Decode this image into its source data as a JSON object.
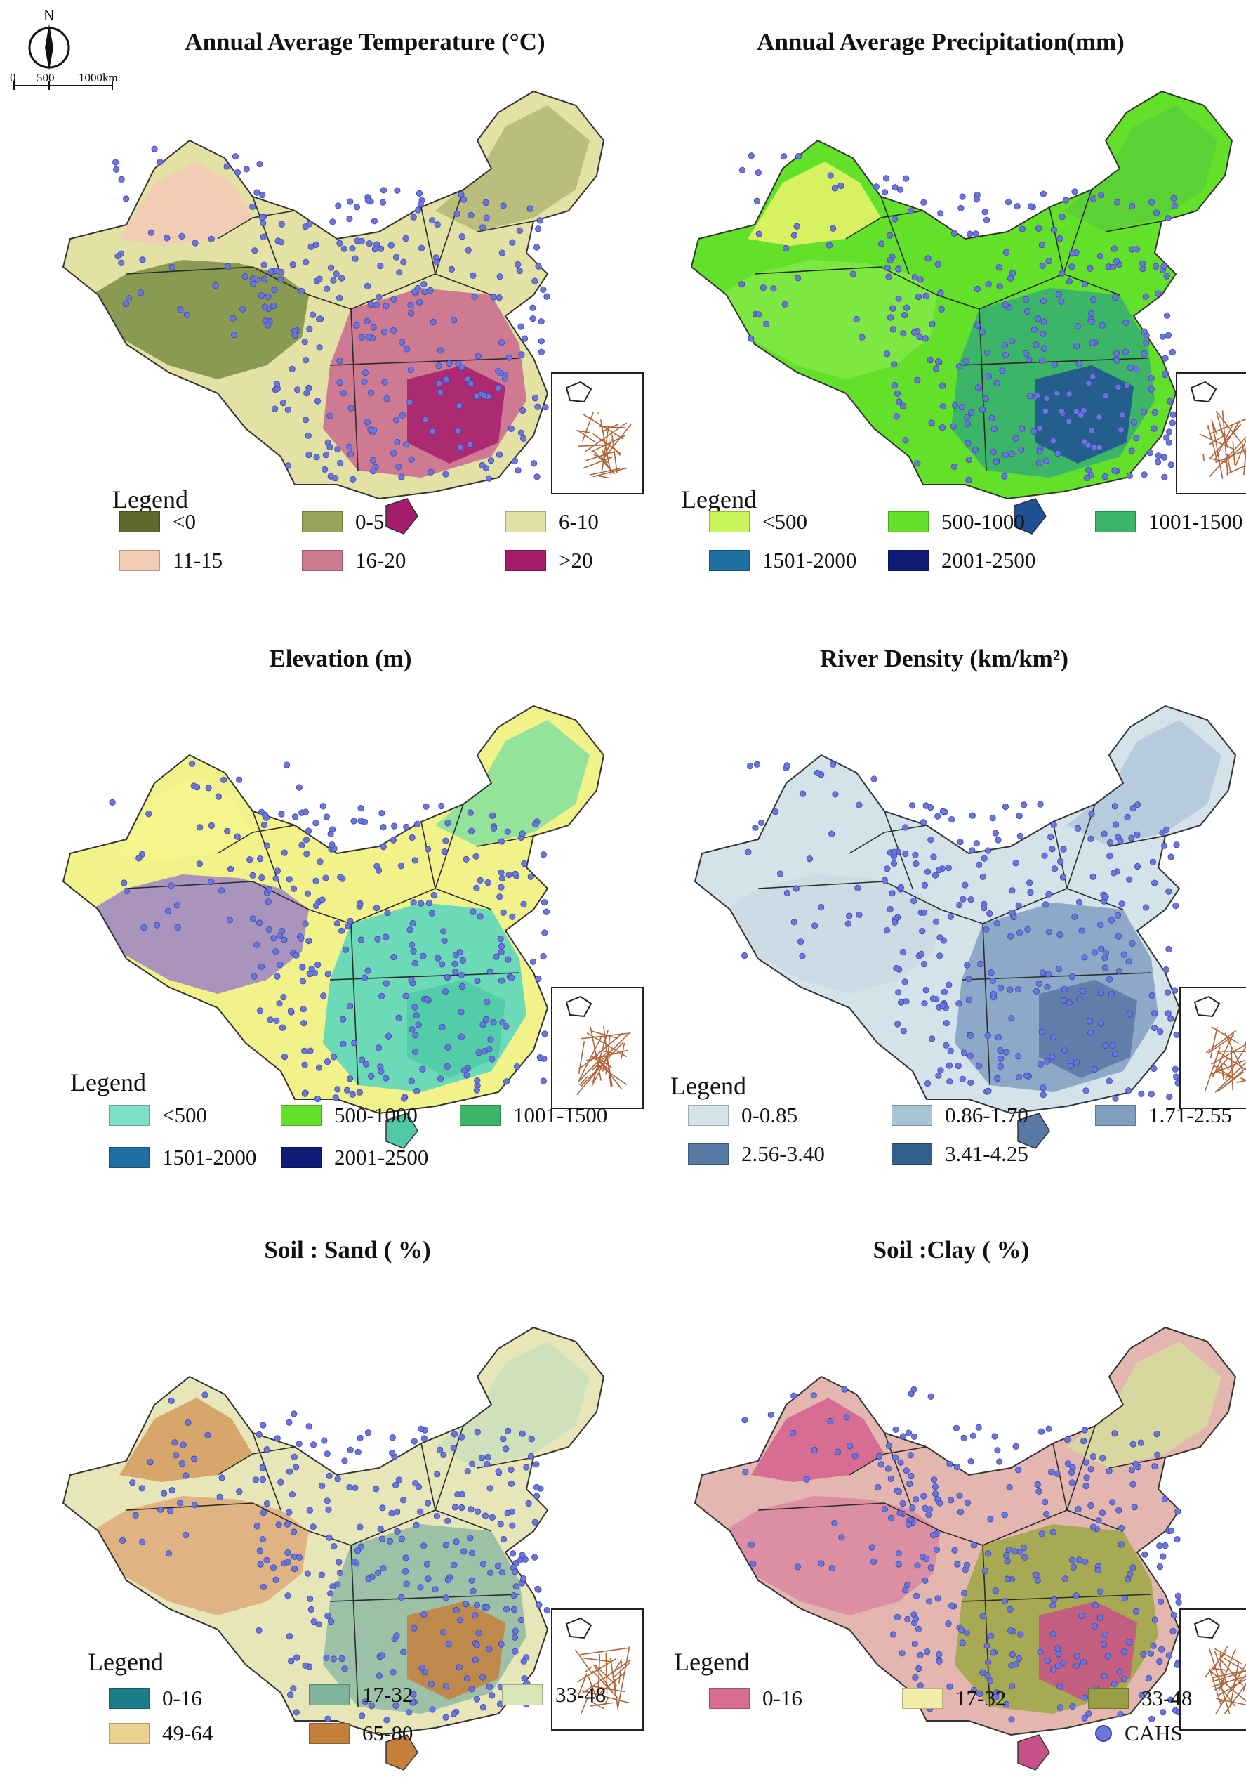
{
  "compass": {
    "north_label": "N",
    "scale_labels": [
      "0",
      "500",
      "1000km"
    ]
  },
  "panels": [
    {
      "title": "Annual Average Temperature (°C)",
      "legend_title": "Legend",
      "items": [
        {
          "label": "<0",
          "color": "#5f6b2e"
        },
        {
          "label": "0-5",
          "color": "#9aa35a"
        },
        {
          "label": "6-10",
          "color": "#e3e1a4"
        },
        {
          "label": "11-15",
          "color": "#f2cdb3"
        },
        {
          "label": "16-20",
          "color": "#cf7a93"
        },
        {
          "label": ">20",
          "color": "#a41c6b"
        }
      ]
    },
    {
      "title": "Annual Average Precipitation(mm)",
      "legend_title": "Legend",
      "items": [
        {
          "label": "<500",
          "color": "#c8f55a"
        },
        {
          "label": "500-1000",
          "color": "#62e02a"
        },
        {
          "label": "1001-1500",
          "color": "#3cb568"
        },
        {
          "label": "1501-2000",
          "color": "#1f6fa2"
        },
        {
          "label": "2001-2500",
          "color": "#0f1d78"
        }
      ]
    },
    {
      "title": "Elevation (m)",
      "legend_title": "Legend",
      "items": [
        {
          "label": "<500",
          "color": "#7fe0c8"
        },
        {
          "label": "500-1000",
          "color": "#62e02a"
        },
        {
          "label": "1001-1500",
          "color": "#3cb568"
        },
        {
          "label": "1501-2000",
          "color": "#1f6fa2"
        },
        {
          "label": "2001-2500",
          "color": "#0f1d78"
        }
      ]
    },
    {
      "title": "River Density (km/km²)",
      "legend_title": "Legend",
      "items": [
        {
          "label": "0-0.85",
          "color": "#d4e2ea"
        },
        {
          "label": "0.86-1.70",
          "color": "#a9c3d6"
        },
        {
          "label": "1.71-2.55",
          "color": "#7f9fbf"
        },
        {
          "label": "2.56-3.40",
          "color": "#5879a6"
        },
        {
          "label": "3.41-4.25",
          "color": "#355f8c"
        }
      ]
    },
    {
      "title": "Soil : Sand ( %)",
      "legend_title": "Legend",
      "items": [
        {
          "label": "0-16",
          "color": "#1c7d8a"
        },
        {
          "label": "17-32",
          "color": "#7fb39d"
        },
        {
          "label": "33-48",
          "color": "#d8e5b4"
        },
        {
          "label": "49-64",
          "color": "#ecd08f"
        },
        {
          "label": "65-80",
          "color": "#c47f3b"
        }
      ]
    },
    {
      "title": "Soil :Clay ( %)",
      "legend_title": "Legend",
      "items": [
        {
          "label": "0-16",
          "color": "#d86d93"
        },
        {
          "label": "17-32",
          "color": "#f1eda6"
        },
        {
          "label": "33-48",
          "color": "#9a9d45"
        }
      ],
      "extra": {
        "label": "CAHS",
        "color": "#6b76dd"
      }
    }
  ],
  "map_fills": [
    {
      "base": "#e3e1a4",
      "west": "#f2cdb3",
      "tibet": "#8b9a52",
      "south": "#cf7a93",
      "deep": "#a41c6b",
      "northeast": "#b9be7c"
    },
    {
      "base": "#62e02a",
      "west": "#d8f160",
      "tibet": "#7ee843",
      "south": "#3cb568",
      "deep": "#1f4f94",
      "northeast": "#5ad236"
    },
    {
      "base": "#f1f38a",
      "west": "#f4f58a",
      "tibet": "#a894bd",
      "south": "#6cd9b7",
      "deep": "#4fc9a8",
      "northeast": "#94e39a"
    },
    {
      "base": "#d4e2ea",
      "west": "#d4e2ea",
      "tibet": "#ccdbe4",
      "south": "#8ea9c8",
      "deep": "#5879a6",
      "northeast": "#b6cbdb"
    },
    {
      "base": "#e6e6b8",
      "west": "#d7a66a",
      "tibet": "#e0b482",
      "south": "#9cc1a7",
      "deep": "#c47f3b",
      "northeast": "#cfe0bd"
    },
    {
      "base": "#e3b6b0",
      "west": "#d86d93",
      "tibet": "#dc8fa3",
      "south": "#a7a953",
      "deep": "#c9518a",
      "northeast": "#d9d7a0"
    }
  ]
}
